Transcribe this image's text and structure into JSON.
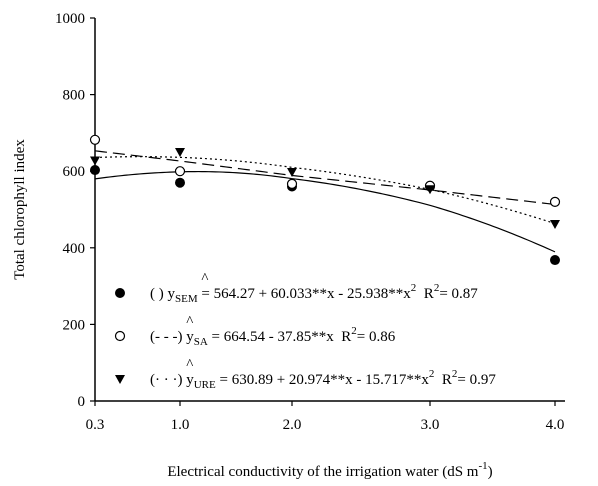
{
  "chart_data": {
    "type": "scatter",
    "xlabel": "Electrical conductivity of the irrigation water (dS m",
    "xlabel_sup": "-1",
    "xlabel_end": ")",
    "ylabel": "Total chlorophyll index",
    "x": [
      0.3,
      1.0,
      2.0,
      3.0,
      4.0
    ],
    "x_tick_labels": [
      "0.3",
      "1.0",
      "2.0",
      "3.0",
      "4.0"
    ],
    "ylim": [
      0,
      1000
    ],
    "y_ticks": [
      0,
      200,
      400,
      600,
      800,
      1000
    ],
    "grid": false,
    "series": [
      {
        "marker": "filled-circle",
        "line": "solid",
        "values": [
          603,
          570,
          560,
          560,
          368
        ],
        "fit": {
          "c0": 564.27,
          "c1": 60.033,
          "c2": -25.938
        },
        "legend": {
          "prefix": "(      )",
          "sub": "SEM",
          "equation": "= 564.27 + 60.033**x - 25.938**x",
          "eq_sup": "2",
          "r2": "= 0.87"
        }
      },
      {
        "marker": "open-circle",
        "line": "dashed",
        "values": [
          682,
          600,
          567,
          562,
          520
        ],
        "fit": {
          "c0": 664.54,
          "c1": -37.85,
          "c2": 0
        },
        "legend": {
          "prefix": "(- - -)",
          "sub": "SA",
          "equation": "= 664.54 - 37.85**x",
          "eq_sup": "",
          "r2": "= 0.86"
        }
      },
      {
        "marker": "filled-triangle",
        "line": "dotted",
        "values": [
          628,
          650,
          598,
          553,
          462
        ],
        "fit": {
          "c0": 630.89,
          "c1": 20.974,
          "c2": -15.717
        },
        "legend": {
          "prefix": "(· · ·)",
          "sub": "URE",
          "equation": "= 630.89 + 20.974**x - 15.717**x",
          "eq_sup": "2",
          "r2": "= 0.97"
        }
      }
    ]
  }
}
